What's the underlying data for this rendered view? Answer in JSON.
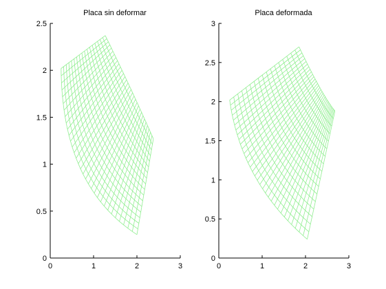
{
  "chart_data": [
    {
      "type": "mesh",
      "title": "Placa sin deformar",
      "xlim": [
        0,
        3
      ],
      "ylim": [
        0,
        2.5
      ],
      "xticks": [
        "0",
        "1",
        "2",
        "3"
      ],
      "yticks": [
        "0",
        "0.5",
        "1",
        "1.5",
        "2",
        "2.5"
      ],
      "mesh_color": "#90ee90",
      "rows": 32,
      "cols": 17,
      "corners": {
        "top_left": [
          0.25,
          2.02
        ],
        "top_right": [
          1.27,
          2.37
        ],
        "bottom_left": [
          2.0,
          0.25
        ],
        "bottom_right": [
          2.38,
          1.27
        ]
      },
      "edge_midpoints": {
        "outer_arc": [
          0.7,
          0.95
        ],
        "inner_arc": [
          1.83,
          1.83
        ]
      }
    },
    {
      "type": "mesh",
      "title": "Placa deformada",
      "xlim": [
        0,
        3
      ],
      "ylim": [
        0,
        3
      ],
      "xticks": [
        "0",
        "1",
        "2",
        "3"
      ],
      "yticks": [
        "0",
        "0.5",
        "1",
        "1.5",
        "2",
        "2.5",
        "3"
      ],
      "mesh_color": "#90ee90",
      "rows": 32,
      "cols": 17,
      "corners": {
        "top_left": [
          0.25,
          2.02
        ],
        "top_right": [
          1.85,
          2.7
        ],
        "bottom_left": [
          2.04,
          0.24
        ],
        "bottom_right": [
          2.68,
          1.88
        ]
      },
      "edge_midpoints": {
        "outer_arc": [
          0.83,
          1.05
        ],
        "inner_arc": [
          2.33,
          2.18
        ]
      }
    }
  ]
}
